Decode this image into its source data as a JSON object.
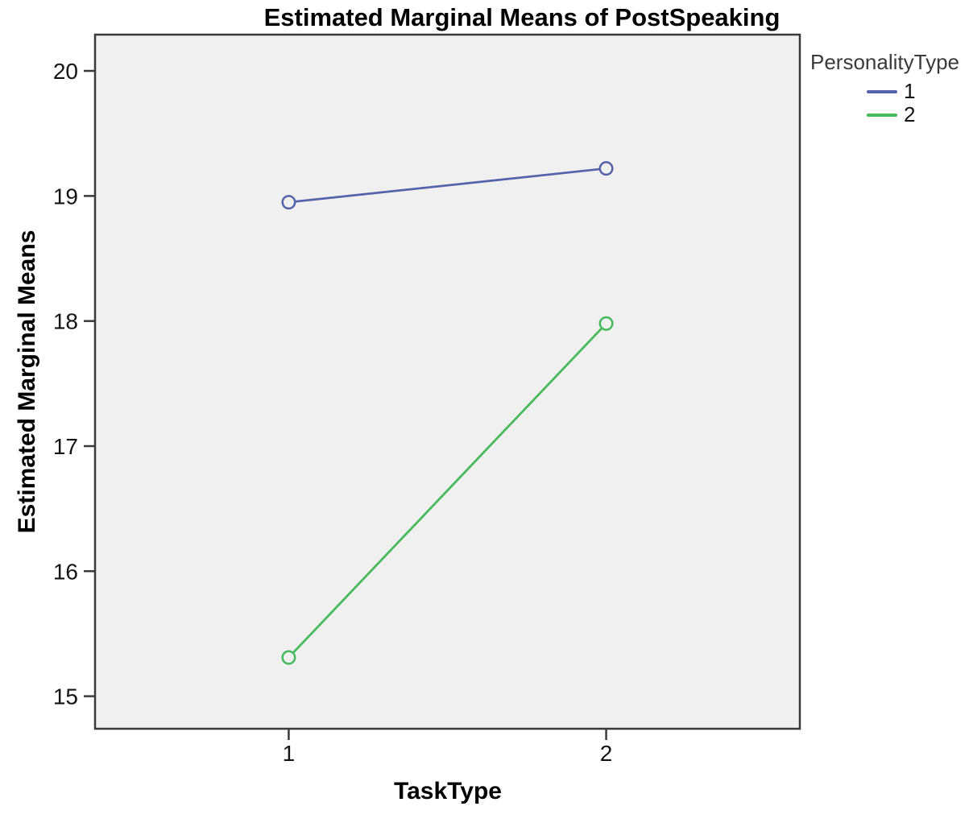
{
  "chart_data": {
    "type": "line",
    "title": "Estimated Marginal Means of PostSpeaking",
    "xlabel": "TaskType",
    "ylabel": "Estimated Marginal Means",
    "x": [
      1,
      2
    ],
    "xticks": [
      "1",
      "2"
    ],
    "yticks": [
      15,
      16,
      17,
      18,
      19,
      20
    ],
    "xlim": [
      0.39,
      2.61
    ],
    "ylim": [
      14.74,
      20.29
    ],
    "grid": false,
    "legend_position": "right",
    "marker": "open-circle",
    "plot_background": "#F0F0F0",
    "frame_color": "#3A3A3A",
    "tick_label_color": "#141414",
    "series": [
      {
        "name": "1",
        "color": "#5564AA",
        "values": [
          18.95,
          19.22
        ]
      },
      {
        "name": "2",
        "color": "#46B95A",
        "values": [
          15.31,
          17.98
        ]
      }
    ]
  },
  "legend": {
    "title": "PersonalityType",
    "items": [
      {
        "label": "1",
        "color": "#5564AA"
      },
      {
        "label": "2",
        "color": "#46B95A"
      }
    ]
  }
}
